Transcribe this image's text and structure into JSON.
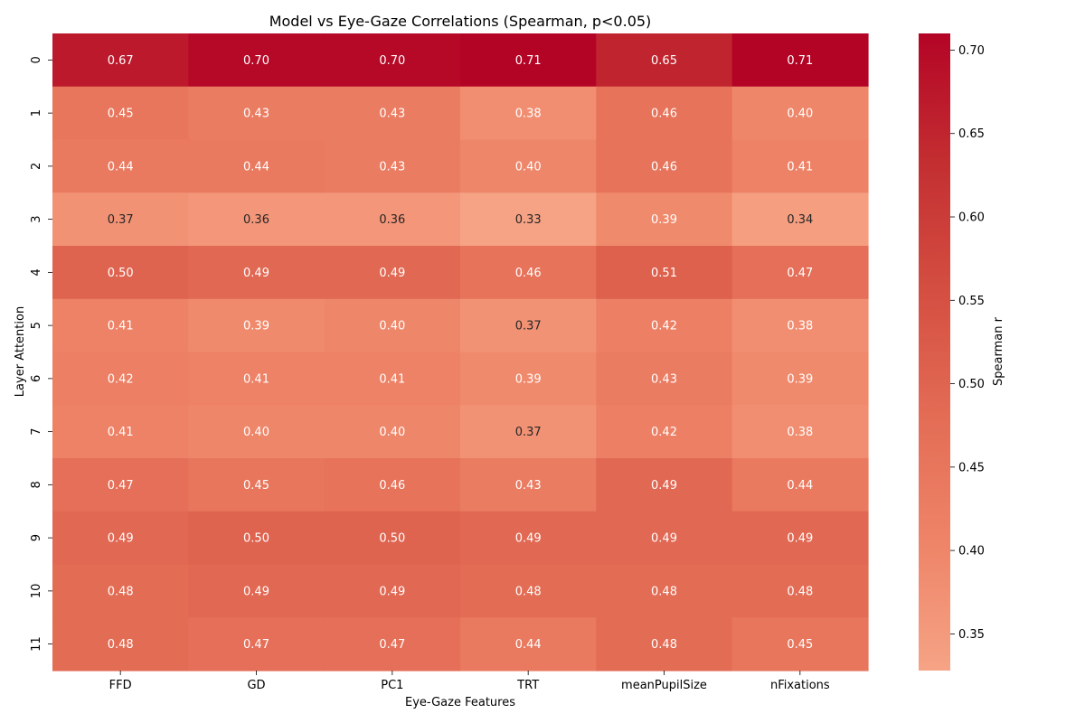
{
  "chart_data": {
    "type": "heatmap",
    "title": "Model vs Eye-Gaze Correlations (Spearman, p<0.05)",
    "xlabel": "Eye-Gaze Features",
    "ylabel": "Layer Attention",
    "x_categories": [
      "FFD",
      "GD",
      "PC1",
      "TRT",
      "meanPupilSize",
      "nFixations"
    ],
    "y_categories": [
      "0",
      "1",
      "2",
      "3",
      "4",
      "5",
      "6",
      "7",
      "8",
      "9",
      "10",
      "11"
    ],
    "values": [
      [
        0.67,
        0.7,
        0.7,
        0.71,
        0.65,
        0.71
      ],
      [
        0.45,
        0.43,
        0.43,
        0.38,
        0.46,
        0.4
      ],
      [
        0.44,
        0.44,
        0.43,
        0.4,
        0.46,
        0.41
      ],
      [
        0.37,
        0.36,
        0.36,
        0.33,
        0.39,
        0.34
      ],
      [
        0.5,
        0.49,
        0.49,
        0.46,
        0.51,
        0.47
      ],
      [
        0.41,
        0.39,
        0.4,
        0.37,
        0.42,
        0.38
      ],
      [
        0.42,
        0.41,
        0.41,
        0.39,
        0.43,
        0.39
      ],
      [
        0.41,
        0.4,
        0.4,
        0.37,
        0.42,
        0.38
      ],
      [
        0.47,
        0.45,
        0.46,
        0.43,
        0.49,
        0.44
      ],
      [
        0.49,
        0.5,
        0.5,
        0.49,
        0.49,
        0.49
      ],
      [
        0.48,
        0.49,
        0.49,
        0.48,
        0.48,
        0.48
      ],
      [
        0.48,
        0.47,
        0.47,
        0.44,
        0.48,
        0.45
      ]
    ],
    "value_format": "0.00",
    "colorbar": {
      "label": "Spearman r",
      "range": [
        0.328,
        0.71
      ],
      "ticks": [
        0.35,
        0.4,
        0.45,
        0.5,
        0.55,
        0.6,
        0.65,
        0.7
      ],
      "tick_labels": [
        "0.35",
        "0.40",
        "0.45",
        "0.50",
        "0.55",
        "0.60",
        "0.65",
        "0.70"
      ],
      "colormap": "coolwarm-upper",
      "color_stops": [
        "#f6a385",
        "#ee8468",
        "#e36c55",
        "#d44e41",
        "#c32e31",
        "#b40426"
      ]
    },
    "annotation_colors": {
      "light": "#ffffff",
      "dark": "#262626"
    },
    "grid": false,
    "legend": "colorbar-right"
  }
}
